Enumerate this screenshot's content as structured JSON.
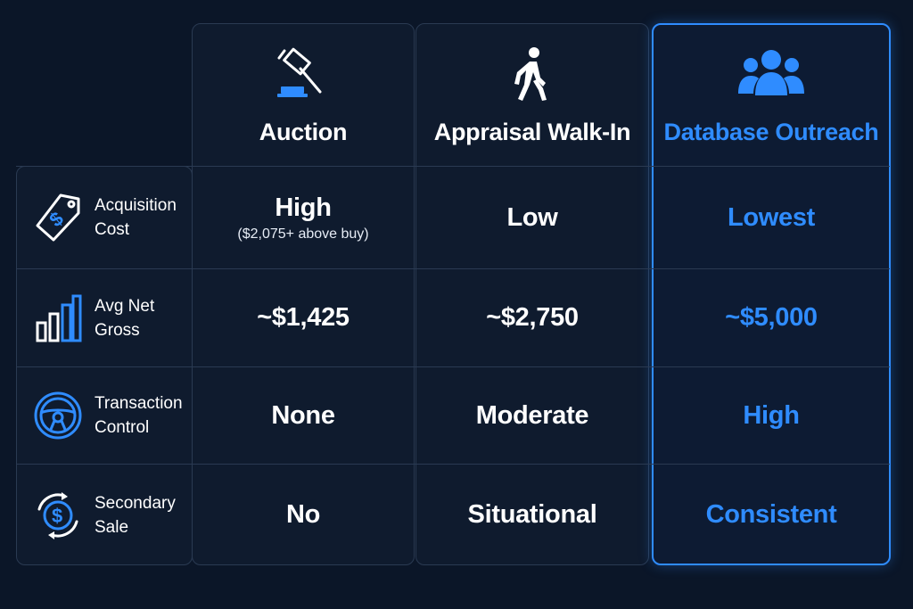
{
  "columns": [
    {
      "title": "Auction",
      "icon": "gavel-icon"
    },
    {
      "title": "Appraisal Walk-In",
      "icon": "walking-person-icon"
    },
    {
      "title": "Database Outreach",
      "icon": "people-group-icon",
      "highlighted": true
    }
  ],
  "rows": [
    {
      "label_line1": "Acquisition",
      "label_line2": "Cost",
      "icon": "price-tag-icon",
      "values": [
        "High",
        "Low",
        "Lowest"
      ],
      "sub": "($2,075+ above buy)"
    },
    {
      "label_line1": "Avg Net",
      "label_line2": "Gross",
      "icon": "bar-chart-icon",
      "values": [
        "~$1,425",
        "~$2,750",
        "~$5,000"
      ]
    },
    {
      "label_line1": "Transaction",
      "label_line2": "Control",
      "icon": "steering-wheel-icon",
      "values": [
        "None",
        "Moderate",
        "High"
      ]
    },
    {
      "label_line1": "Secondary",
      "label_line2": "Sale",
      "icon": "dollar-cycle-icon",
      "values": [
        "No",
        "Situational",
        "Consistent"
      ]
    }
  ],
  "colors": {
    "accent": "#2f8cff",
    "background": "#0b1628",
    "text": "#ffffff",
    "border": "#2a3a52"
  }
}
